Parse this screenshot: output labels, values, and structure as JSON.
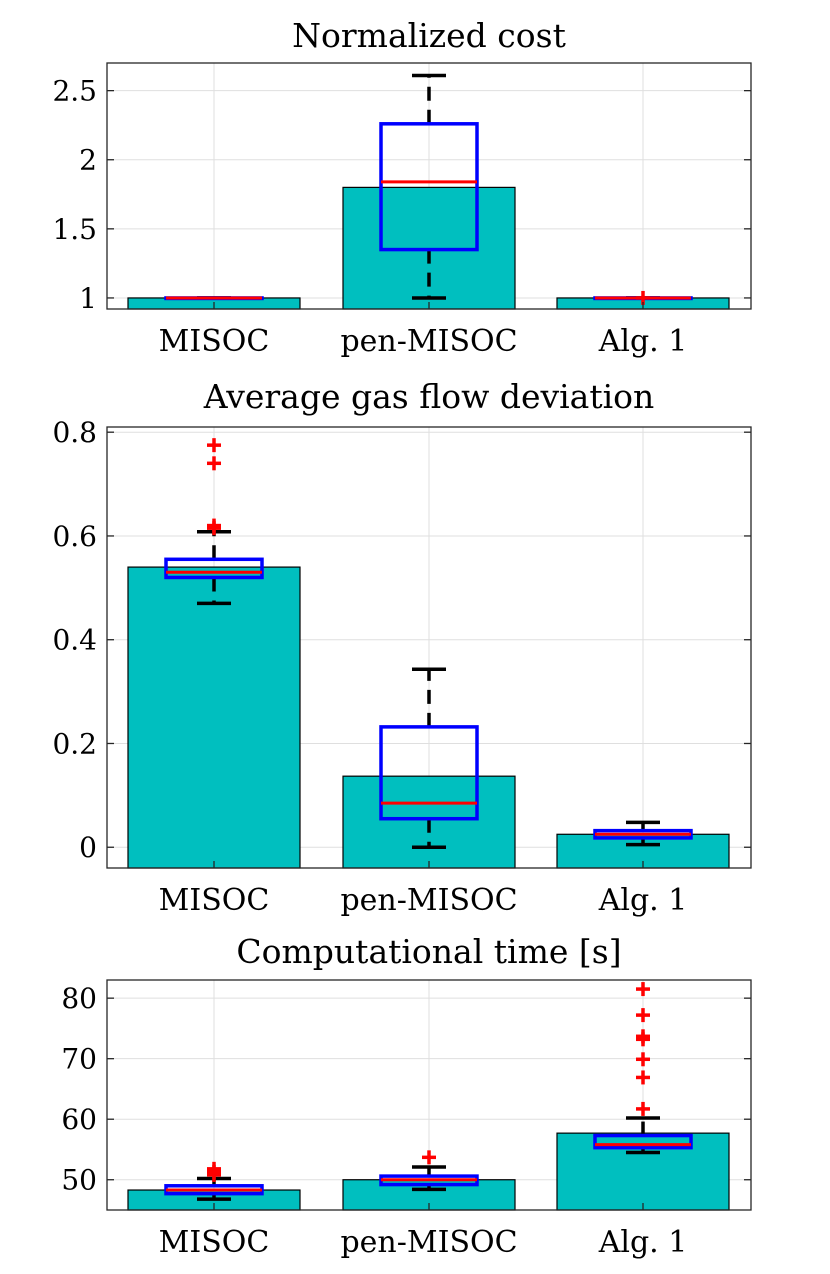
{
  "chart_data": [
    {
      "type": "bar",
      "title": "Normalized cost",
      "categories": [
        "MISOC",
        "pen-MISOC",
        "Alg. 1"
      ],
      "values": [
        1.0,
        1.8,
        1.0
      ],
      "boxplots": [
        {
          "q1": 1.0,
          "median": 1.0,
          "q3": 1.0,
          "whisker_low": 1.0,
          "whisker_high": 1.0,
          "outliers": []
        },
        {
          "q1": 1.35,
          "median": 1.84,
          "q3": 2.26,
          "whisker_low": 1.0,
          "whisker_high": 2.61,
          "outliers": []
        },
        {
          "q1": 1.0,
          "median": 1.0,
          "q3": 1.0,
          "whisker_low": 1.0,
          "whisker_high": 1.0,
          "outliers": [
            1.0
          ]
        }
      ],
      "ylim": [
        0.92,
        2.7
      ],
      "yticks": [
        1,
        1.5,
        2,
        2.5
      ],
      "ytick_labels": [
        "1",
        "1.5",
        "2",
        "2.5"
      ],
      "xlabel": "",
      "ylabel": "",
      "grid": true
    },
    {
      "type": "bar",
      "title": "Average gas flow deviation",
      "categories": [
        "MISOC",
        "pen-MISOC",
        "Alg. 1"
      ],
      "values": [
        0.54,
        0.137,
        0.025
      ],
      "boxplots": [
        {
          "q1": 0.52,
          "median": 0.53,
          "q3": 0.555,
          "whisker_low": 0.47,
          "whisker_high": 0.608,
          "outliers": [
            0.615,
            0.62,
            0.74,
            0.775
          ]
        },
        {
          "q1": 0.055,
          "median": 0.085,
          "q3": 0.232,
          "whisker_low": 0.0,
          "whisker_high": 0.343,
          "outliers": []
        },
        {
          "q1": 0.018,
          "median": 0.025,
          "q3": 0.032,
          "whisker_low": 0.005,
          "whisker_high": 0.048,
          "outliers": []
        }
      ],
      "ylim": [
        -0.04,
        0.81
      ],
      "yticks": [
        0,
        0.2,
        0.4,
        0.6,
        0.8
      ],
      "ytick_labels": [
        "0",
        "0.2",
        "0.4",
        "0.6",
        "0.8"
      ],
      "xlabel": "",
      "ylabel": "",
      "grid": true
    },
    {
      "type": "bar",
      "title": "Computational time [s]",
      "categories": [
        "MISOC",
        "pen-MISOC",
        "Alg. 1"
      ],
      "values": [
        48.3,
        50.0,
        57.7
      ],
      "boxplots": [
        {
          "q1": 47.7,
          "median": 48.3,
          "q3": 49.0,
          "whisker_low": 46.8,
          "whisker_high": 50.2,
          "outliers": [
            50.8,
            51.3,
            51.8
          ]
        },
        {
          "q1": 49.2,
          "median": 50.0,
          "q3": 50.6,
          "whisker_low": 48.4,
          "whisker_high": 52.1,
          "outliers": [
            53.7
          ]
        },
        {
          "q1": 55.3,
          "median": 55.8,
          "q3": 57.3,
          "whisker_low": 54.5,
          "whisker_high": 60.2,
          "outliers": [
            61.7,
            66.9,
            69.9,
            73.2,
            73.7,
            77.2,
            81.5
          ]
        }
      ],
      "ylim": [
        45,
        83
      ],
      "yticks": [
        50,
        60,
        70,
        80
      ],
      "ytick_labels": [
        "50",
        "60",
        "70",
        "80"
      ],
      "xlabel": "",
      "ylabel": "",
      "grid": true
    }
  ],
  "colors": {
    "bar": "#00BFBF",
    "box": "#0000FF",
    "median": "#FF0000",
    "whisker": "#000000",
    "outlier": "#FF0000",
    "grid": "#DFDFDF",
    "axis": "#262626"
  }
}
